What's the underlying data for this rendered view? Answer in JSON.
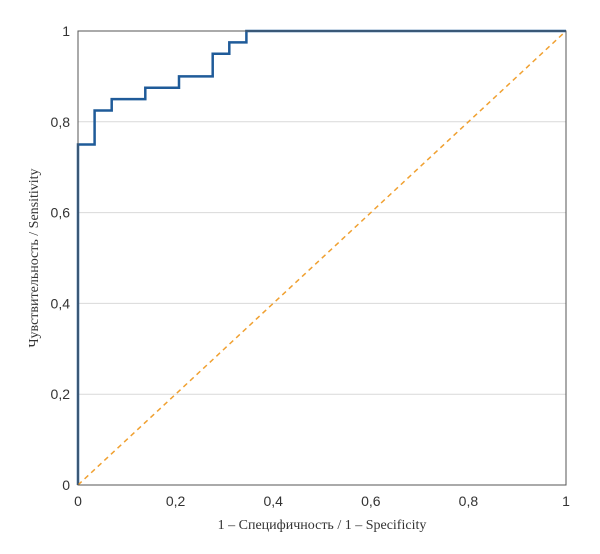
{
  "chart_data": {
    "type": "line",
    "title": "",
    "xlabel": "1 – Специфичность / 1 – Specificity",
    "ylabel": "Чувствительность / Sensitivity",
    "xlim": [
      0,
      1
    ],
    "ylim": [
      0,
      1
    ],
    "x_ticks": [
      "0",
      "0,2",
      "0,4",
      "0,6",
      "0,8",
      "1"
    ],
    "y_ticks": [
      "0",
      "0,2",
      "0,4",
      "0,6",
      "0,8",
      "1"
    ],
    "grid": "horizontal",
    "legend": "none",
    "series": [
      {
        "style": "step",
        "color": "#1f5b99",
        "x": [
          0,
          0,
          0.034,
          0.034,
          0.069,
          0.069,
          0.138,
          0.138,
          0.207,
          0.207,
          0.276,
          0.276,
          0.31,
          0.31,
          0.345,
          0.345,
          1.0
        ],
        "y": [
          0,
          0.75,
          0.75,
          0.825,
          0.825,
          0.85,
          0.85,
          0.875,
          0.875,
          0.9,
          0.9,
          0.95,
          0.95,
          0.975,
          0.975,
          1.0,
          1.0
        ]
      },
      {
        "style": "dashed",
        "color": "#f0a030",
        "x": [
          0,
          1
        ],
        "y": [
          0,
          1
        ]
      }
    ]
  }
}
